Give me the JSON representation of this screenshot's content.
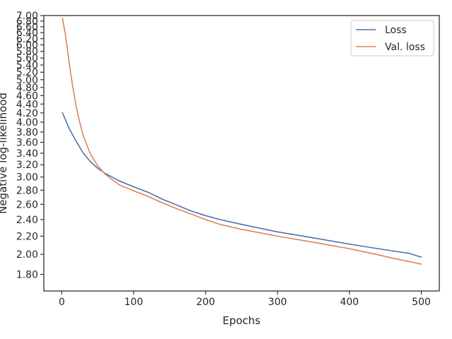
{
  "chart_data": {
    "type": "line",
    "title": "",
    "xlabel": "Epochs",
    "ylabel": "Negative log-likelihood",
    "xlim": [
      -25,
      525
    ],
    "ylim": [
      1.65,
      7.0
    ],
    "yscale": "log",
    "xticks": [
      0,
      100,
      200,
      300,
      400,
      500
    ],
    "xtick_labels": [
      "0",
      "100",
      "200",
      "300",
      "400",
      "500"
    ],
    "yticks": [
      1.8,
      2.0,
      2.2,
      2.4,
      2.6,
      2.8,
      3.0,
      3.2,
      3.4,
      3.6,
      3.8,
      4.0,
      4.2,
      4.4,
      4.6,
      4.8,
      5.0,
      5.2,
      5.4,
      5.6,
      5.8,
      6.0,
      6.2,
      6.4,
      6.6,
      6.8,
      7.0
    ],
    "ytick_labels": [
      "1.80",
      "2.00",
      "2.20",
      "2.40",
      "2.60",
      "2.80",
      "3.00",
      "3.20",
      "3.40",
      "3.60",
      "3.80",
      "4.00",
      "4.20",
      "4.40",
      "4.60",
      "4.80",
      "5.00",
      "5.20",
      "5.40",
      "5.60",
      "5.80",
      "6.00",
      "6.20",
      "6.40",
      "6.60",
      "6.80",
      "7.00"
    ],
    "grid": false,
    "legend_position": "top-right",
    "series": [
      {
        "name": "Loss",
        "color": "#4c72b0",
        "x": [
          1,
          10,
          20,
          30,
          40,
          50,
          60,
          70,
          80,
          100,
          120,
          140,
          160,
          180,
          200,
          220,
          250,
          300,
          350,
          400,
          440,
          483,
          500
        ],
        "y": [
          4.2,
          3.88,
          3.62,
          3.4,
          3.25,
          3.14,
          3.06,
          3.0,
          2.94,
          2.85,
          2.77,
          2.67,
          2.59,
          2.51,
          2.45,
          2.4,
          2.34,
          2.25,
          2.18,
          2.11,
          2.06,
          2.01,
          1.97
        ]
      },
      {
        "name": "Val. loss",
        "color": "#dd8452",
        "x": [
          1,
          5,
          10,
          15,
          20,
          25,
          30,
          40,
          50,
          60,
          70,
          80,
          100,
          120,
          140,
          160,
          180,
          200,
          220,
          250,
          300,
          350,
          400,
          437,
          460,
          480,
          500
        ],
        "y": [
          6.9,
          6.35,
          5.5,
          4.85,
          4.35,
          4.0,
          3.72,
          3.38,
          3.18,
          3.05,
          2.96,
          2.88,
          2.79,
          2.71,
          2.62,
          2.54,
          2.47,
          2.4,
          2.34,
          2.28,
          2.2,
          2.13,
          2.06,
          2.0,
          1.96,
          1.93,
          1.9
        ]
      }
    ]
  }
}
